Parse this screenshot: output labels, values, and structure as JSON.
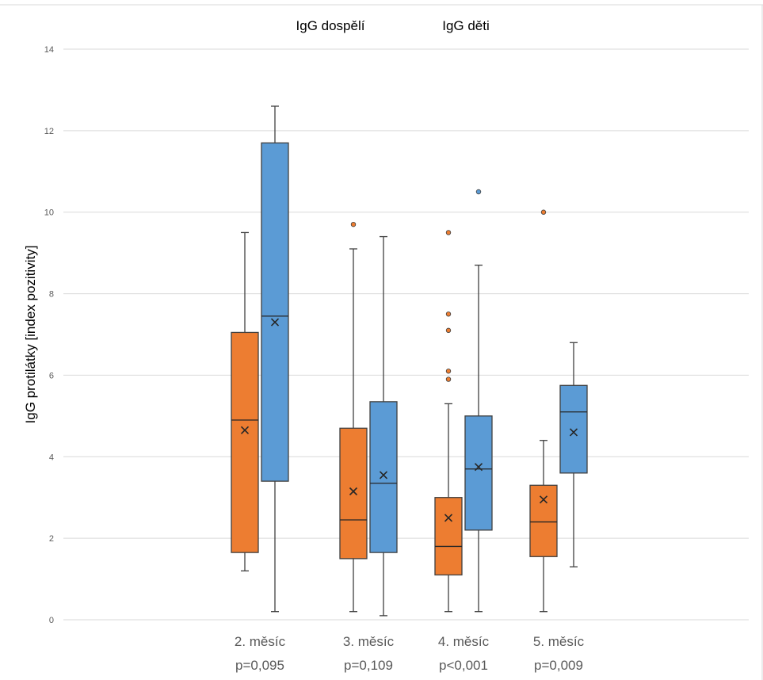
{
  "chart_data": {
    "type": "box",
    "title": "",
    "ylabel": "IgG protilátky  [index pozitivity]",
    "xlabel": "",
    "ylim": [
      0,
      14
    ],
    "yticks": [
      0,
      2,
      4,
      6,
      8,
      10,
      12,
      14
    ],
    "grid": true,
    "legend_position": "top",
    "categories": [
      {
        "line1": "2. měsíc",
        "line2": "p=0,095"
      },
      {
        "line1": "3. měsíc",
        "line2": "p=0,109"
      },
      {
        "line1": "4. měsíc",
        "line2": "p<0,001"
      },
      {
        "line1": "5. měsíc",
        "line2": "p=0,009"
      }
    ],
    "series": [
      {
        "name": "IgG dospělí",
        "color": "#ed7d31",
        "boxes": [
          {
            "min": 1.2,
            "q1": 1.65,
            "median": 4.9,
            "q3": 7.05,
            "max": 9.5,
            "mean": 4.65,
            "outliers": []
          },
          {
            "min": 0.2,
            "q1": 1.5,
            "median": 2.45,
            "q3": 4.7,
            "max": 9.1,
            "mean": 3.15,
            "outliers": [
              9.7
            ]
          },
          {
            "min": 0.2,
            "q1": 1.1,
            "median": 1.8,
            "q3": 3.0,
            "max": 5.3,
            "mean": 2.5,
            "outliers": [
              5.9,
              6.1,
              7.1,
              7.5,
              9.5
            ]
          },
          {
            "min": 0.2,
            "q1": 1.55,
            "median": 2.4,
            "q3": 3.3,
            "max": 4.4,
            "mean": 2.95,
            "outliers": [
              10.0
            ]
          }
        ]
      },
      {
        "name": "IgG děti",
        "color": "#5b9bd5",
        "boxes": [
          {
            "min": 0.2,
            "q1": 3.4,
            "median": 7.45,
            "q3": 11.7,
            "max": 12.6,
            "mean": 7.3,
            "outliers": []
          },
          {
            "min": 0.1,
            "q1": 1.65,
            "median": 3.35,
            "q3": 5.35,
            "max": 9.4,
            "mean": 3.55,
            "outliers": []
          },
          {
            "min": 0.2,
            "q1": 2.2,
            "median": 3.7,
            "q3": 5.0,
            "max": 8.7,
            "mean": 3.75,
            "outliers": [
              10.5
            ]
          },
          {
            "min": 1.3,
            "q1": 3.6,
            "median": 5.1,
            "q3": 5.75,
            "max": 6.8,
            "mean": 4.6,
            "outliers": []
          }
        ]
      }
    ]
  }
}
